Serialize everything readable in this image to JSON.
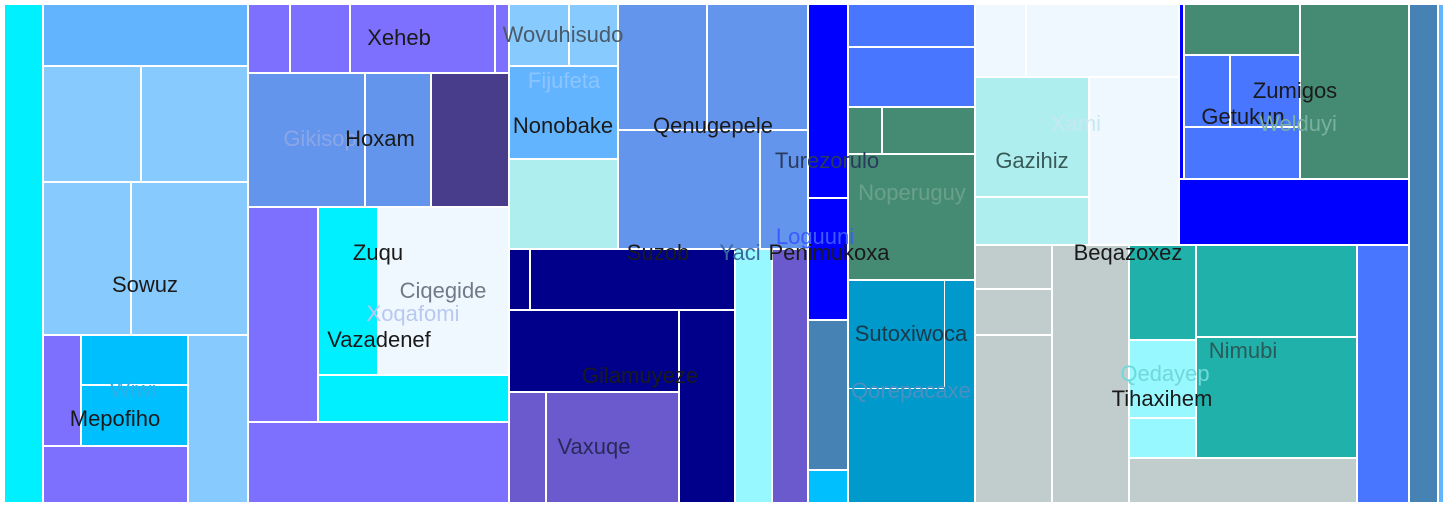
{
  "chart_data": {
    "type": "treemap",
    "title": "",
    "colors": {
      "cyan": "#00f0ff",
      "steel": "#62b4ff",
      "sky": "#87cafe",
      "deepsky": "#00bfff",
      "slateblue": "#7e70ff",
      "cornflower": "#6495ed",
      "darkslateblue": "#483d8b",
      "paleturquoise": "#afeeee",
      "aliceblue": "#f0f8ff",
      "navy": "#00008b",
      "mediumslateblue": "#6a5acd",
      "lightcyan": "#98f8ff",
      "blue": "#0000ff",
      "royal": "#4876ff",
      "seagreen": "#458b74",
      "steelblue": "#4682b4",
      "teal": "#0099cc",
      "silver": "#c1cdcd",
      "lightseagreen": "#20b2aa"
    },
    "labels": [
      {
        "text": "Xeheb",
        "color": "#1a1a1a"
      },
      {
        "text": "Wovuhisudo",
        "color": "#4a5a6a"
      },
      {
        "text": "Fijufeta",
        "color": "#8cc4ff"
      },
      {
        "text": "Nonobake",
        "color": "#1a1a1a"
      },
      {
        "text": "Qenugepele",
        "color": "#1a1a1a"
      },
      {
        "text": "Gikisop",
        "color": "#8aa6e6"
      },
      {
        "text": "Hoxam",
        "color": "#1a1a1a"
      },
      {
        "text": "Turezorulo",
        "color": "#2a3a5a"
      },
      {
        "text": "Noperuguy",
        "color": "#6aa08a"
      },
      {
        "text": "Xami",
        "color": "#c8e8f0"
      },
      {
        "text": "Gazihiz",
        "color": "#3a5a5a"
      },
      {
        "text": "Zumigos",
        "color": "#1a1a1a"
      },
      {
        "text": "Getukun",
        "color": "#1a1a1a"
      },
      {
        "text": "Welduyi",
        "color": "#7ab0a0"
      },
      {
        "text": "Sowuz",
        "color": "#1a1a1a"
      },
      {
        "text": "Zuqu",
        "color": "#1a1a1a"
      },
      {
        "text": "Ciqegide",
        "color": "#707a88"
      },
      {
        "text": "Xoqafomi",
        "color": "#b8c8f0"
      },
      {
        "text": "Vazadenef",
        "color": "#1a1a1a"
      },
      {
        "text": "Suzob",
        "color": "#1a1a1a"
      },
      {
        "text": "Yaci",
        "color": "#3a6a9a"
      },
      {
        "text": "Loguuni",
        "color": "#3a5aff"
      },
      {
        "text": "Penimukoxa",
        "color": "#1a1a1a"
      },
      {
        "text": "Beqazoxez",
        "color": "#1a1a1a"
      },
      {
        "text": "Sutoxiwoca",
        "color": "#1a3a4a"
      },
      {
        "text": "Qorepacaxe",
        "color": "#4a90c0"
      },
      {
        "text": "Nimubi",
        "color": "#2a5a5a"
      },
      {
        "text": "Qedayep",
        "color": "#70d8d8"
      },
      {
        "text": "Tihaxihem",
        "color": "#1a1a1a"
      },
      {
        "text": "Gilamuyeze",
        "color": "#1a1a1a"
      },
      {
        "text": "Wiwi",
        "color": "#2ab0e8"
      },
      {
        "text": "Mepofiho",
        "color": "#1a1a1a"
      },
      {
        "text": "Vaxuqe",
        "color": "#2a2a5a"
      }
    ]
  }
}
